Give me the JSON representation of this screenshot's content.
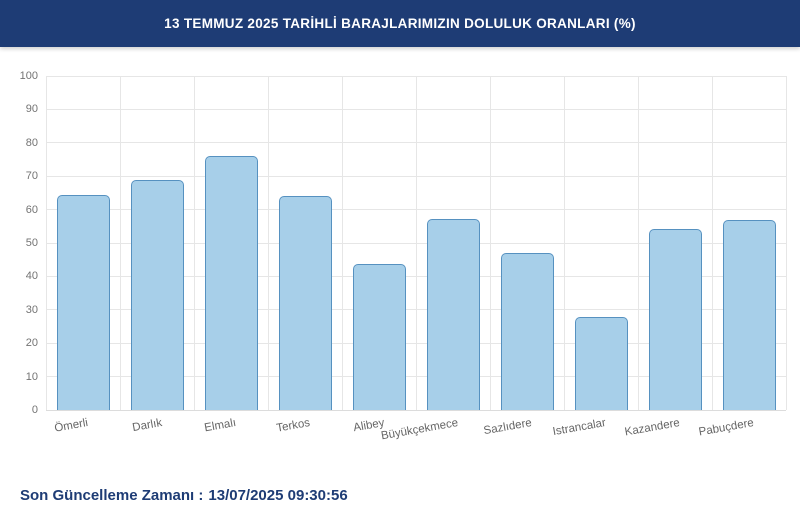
{
  "header": {
    "title": "13 TEMMUZ 2025 TARİHLİ BARAJLARIMIZIN DOLULUK ORANLARI (%)",
    "bg_color": "#1e3c75",
    "text_color": "#ffffff"
  },
  "chart_data": {
    "type": "bar",
    "title": "13 TEMMUZ 2025 TARİHLİ BARAJLARIMIZIN DOLULUK ORANLARI (%)",
    "categories": [
      "Ömerli",
      "Darlık",
      "Elmalı",
      "Terkos",
      "Alibey",
      "Büyükçekmece",
      "Sazlıdere",
      "Istrancalar",
      "Kazandere",
      "Pabuçdere"
    ],
    "values": [
      64.3,
      69.0,
      76.1,
      64.1,
      43.7,
      57.1,
      47.0,
      27.9,
      54.3,
      57.0
    ],
    "xlabel": "",
    "ylabel": "",
    "ylim": [
      0,
      100
    ],
    "ytick_step": 10,
    "yticks": [
      0,
      10,
      20,
      30,
      40,
      50,
      60,
      70,
      80,
      90,
      100
    ],
    "grid": true,
    "legend": "none",
    "bar_fill": "#a7cfe9",
    "bar_border": "#5691c0",
    "grid_color": "#e6e6e6",
    "axis_label_color": "#666666"
  },
  "footer": {
    "label": "Son Güncelleme Zamanı :",
    "timestamp": "13/07/2025 09:30:56",
    "text_color": "#1e3c75"
  }
}
